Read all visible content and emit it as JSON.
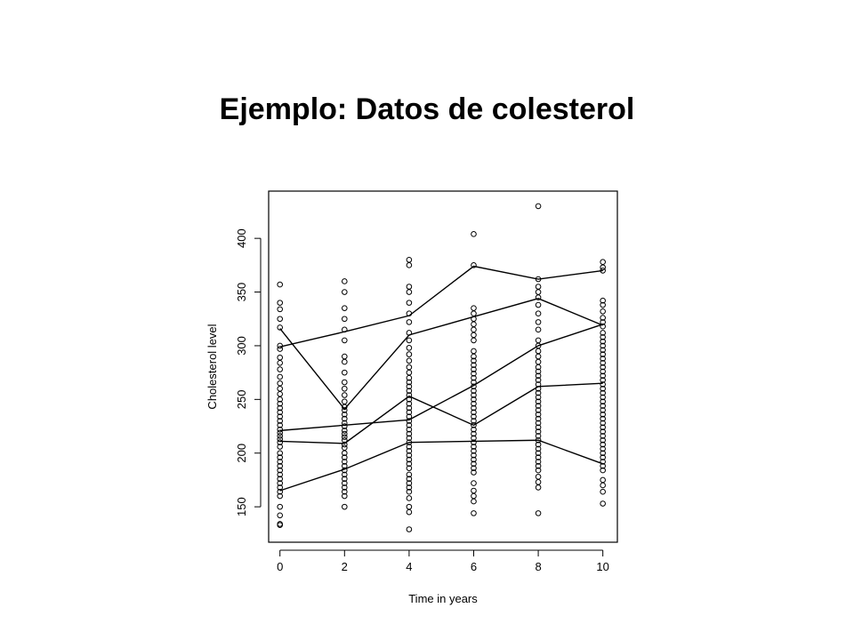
{
  "slide": {
    "title": "Ejemplo: Datos de colesterol"
  },
  "chart_data": {
    "type": "scatter",
    "xlabel": "Time in years",
    "ylabel": "Cholesterol level",
    "xlim": [
      -0.35,
      10.45
    ],
    "ylim": [
      117,
      444
    ],
    "x_ticks": [
      0,
      2,
      4,
      6,
      8,
      10
    ],
    "y_ticks": [
      150,
      200,
      250,
      300,
      350,
      400
    ],
    "grid": false,
    "legend": "none",
    "marker": "open-circle",
    "points": [
      {
        "x": 0,
        "ys": [
          357,
          340,
          334,
          325,
          317,
          300,
          297,
          289,
          284,
          278,
          271,
          265,
          260,
          255,
          250,
          246,
          242,
          238,
          234,
          230,
          226,
          222,
          219,
          216,
          213,
          210,
          206,
          200,
          196,
          192,
          188,
          184,
          180,
          176,
          172,
          168,
          164,
          160,
          150,
          142,
          134,
          133
        ]
      },
      {
        "x": 2,
        "ys": [
          360,
          350,
          335,
          325,
          315,
          305,
          290,
          285,
          275,
          266,
          260,
          254,
          248,
          243,
          240,
          236,
          232,
          228,
          225,
          221,
          218,
          215,
          212,
          208,
          205,
          200,
          196,
          192,
          188,
          184,
          180,
          176,
          172,
          168,
          164,
          160,
          150
        ]
      },
      {
        "x": 4,
        "ys": [
          380,
          375,
          355,
          350,
          340,
          330,
          322,
          312,
          305,
          298,
          292,
          286,
          280,
          275,
          270,
          266,
          262,
          258,
          254,
          250,
          246,
          242,
          238,
          234,
          230,
          226,
          222,
          218,
          214,
          210,
          206,
          202,
          198,
          194,
          190,
          186,
          180,
          176,
          172,
          168,
          164,
          158,
          150,
          145,
          129
        ]
      },
      {
        "x": 6,
        "ys": [
          404,
          375,
          335,
          330,
          325,
          320,
          315,
          310,
          305,
          295,
          290,
          286,
          282,
          278,
          274,
          270,
          266,
          262,
          258,
          254,
          250,
          246,
          242,
          238,
          234,
          230,
          226,
          222,
          218,
          214,
          210,
          206,
          202,
          198,
          194,
          190,
          186,
          182,
          172,
          165,
          160,
          155,
          144
        ]
      },
      {
        "x": 8,
        "ys": [
          430,
          362,
          355,
          350,
          345,
          338,
          330,
          322,
          315,
          305,
          300,
          295,
          290,
          285,
          280,
          276,
          272,
          268,
          264,
          260,
          256,
          252,
          248,
          244,
          240,
          236,
          232,
          228,
          224,
          220,
          216,
          212,
          208,
          204,
          200,
          196,
          192,
          188,
          184,
          178,
          173,
          168,
          144
        ]
      },
      {
        "x": 10,
        "ys": [
          378,
          373,
          370,
          342,
          338,
          332,
          326,
          322,
          318,
          312,
          308,
          304,
          300,
          296,
          292,
          288,
          284,
          280,
          276,
          272,
          268,
          264,
          260,
          256,
          252,
          248,
          244,
          240,
          236,
          232,
          228,
          224,
          220,
          216,
          212,
          208,
          204,
          200,
          196,
          192,
          188,
          184,
          175,
          170,
          164,
          153
        ]
      }
    ],
    "trajectories": [
      {
        "x": [
          0,
          2,
          4,
          6,
          8,
          10
        ],
        "y": [
          299,
          313,
          328,
          374,
          362,
          370
        ]
      },
      {
        "x": [
          0,
          2,
          4,
          6,
          8,
          10
        ],
        "y": [
          316,
          241,
          310,
          327,
          344,
          319
        ]
      },
      {
        "x": [
          0,
          2,
          4,
          6,
          8,
          10
        ],
        "y": [
          221,
          226,
          231,
          263,
          300,
          320
        ]
      },
      {
        "x": [
          0,
          2,
          4,
          6,
          8,
          10
        ],
        "y": [
          211,
          209,
          253,
          226,
          262,
          265
        ]
      },
      {
        "x": [
          0,
          2,
          4,
          6,
          8,
          10
        ],
        "y": [
          165,
          185,
          210,
          211,
          212,
          190
        ]
      }
    ]
  }
}
